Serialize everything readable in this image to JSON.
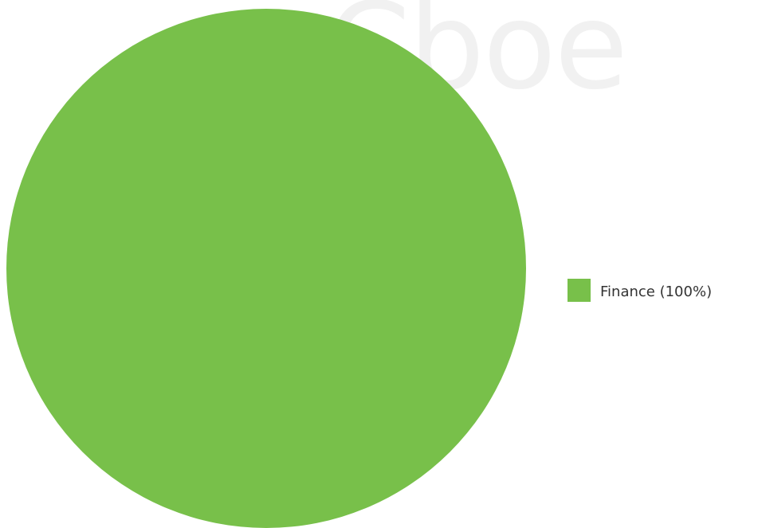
{
  "watermark": {
    "text": "Cboe",
    "color": "#f1f1f1"
  },
  "chart_data": {
    "type": "pie",
    "slices": [
      {
        "label": "Finance",
        "value": 100,
        "color": "#78c04a"
      }
    ],
    "legend": {
      "position": "right",
      "entries": [
        "Finance (100%)"
      ]
    }
  }
}
